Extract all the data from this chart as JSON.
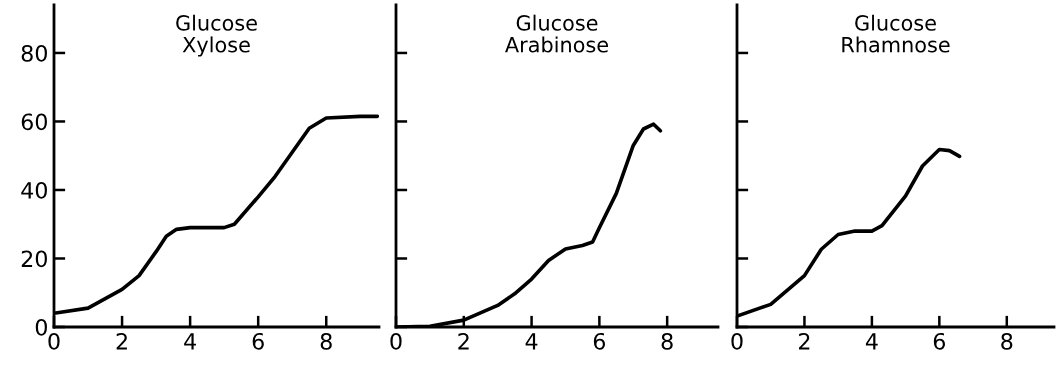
{
  "chart_data": [
    {
      "type": "line",
      "annotations": [
        "Glucose\nXylose"
      ],
      "xlim": [
        0,
        9.55
      ],
      "ylim": [
        0,
        94
      ],
      "xticks": [
        0,
        2,
        4,
        6,
        8
      ],
      "yticks": [
        0,
        20,
        40,
        60,
        80
      ],
      "grid": false,
      "legend": false,
      "series": [
        {
          "color": "#000000",
          "x": [
            0,
            1,
            2,
            2.5,
            3,
            3.3,
            3.6,
            4,
            5,
            5.3,
            6,
            6.5,
            7,
            7.5,
            8,
            9,
            9.5
          ],
          "values": [
            4,
            5.5,
            11,
            15,
            22,
            26.5,
            28.5,
            29,
            29,
            30,
            38,
            44,
            51,
            58,
            61,
            61.5,
            61.5
          ]
        }
      ]
    },
    {
      "type": "line",
      "annotations": [
        "Glucose\nArabinose"
      ],
      "xlim": [
        0,
        9.5
      ],
      "ylim": [
        0,
        94
      ],
      "xticks": [
        0,
        2,
        4,
        6,
        8
      ],
      "yticks": [
        0,
        20,
        40,
        60,
        80
      ],
      "tick_labels": "x",
      "grid": false,
      "legend": false,
      "series": [
        {
          "color": "#000000",
          "x": [
            0,
            1,
            2,
            3,
            3.5,
            4,
            4.5,
            5,
            5.5,
            5.8,
            6,
            6.5,
            7,
            7.3,
            7.6,
            7.8
          ],
          "values": [
            0,
            0.2,
            2,
            6.3,
            9.7,
            14,
            19.4,
            22.8,
            23.8,
            24.8,
            29,
            39,
            53,
            57.8,
            59.2,
            57.3
          ]
        }
      ]
    },
    {
      "type": "line",
      "annotations": [
        "Glucose\nRhamnose"
      ],
      "xlim": [
        0,
        9.4
      ],
      "ylim": [
        0,
        94
      ],
      "xticks": [
        0,
        2,
        4,
        6,
        8
      ],
      "yticks": [
        0,
        20,
        40,
        60,
        80
      ],
      "tick_labels": "x",
      "grid": false,
      "legend": false,
      "series": [
        {
          "color": "#000000",
          "x": [
            0,
            1,
            2,
            2.5,
            3,
            3.5,
            4,
            4.3,
            5,
            5.5,
            6,
            6.3,
            6.6
          ],
          "values": [
            3.2,
            6.6,
            15,
            22.7,
            27,
            28,
            28,
            29.6,
            38.3,
            47,
            51.8,
            51.5,
            49.8
          ]
        }
      ]
    }
  ]
}
